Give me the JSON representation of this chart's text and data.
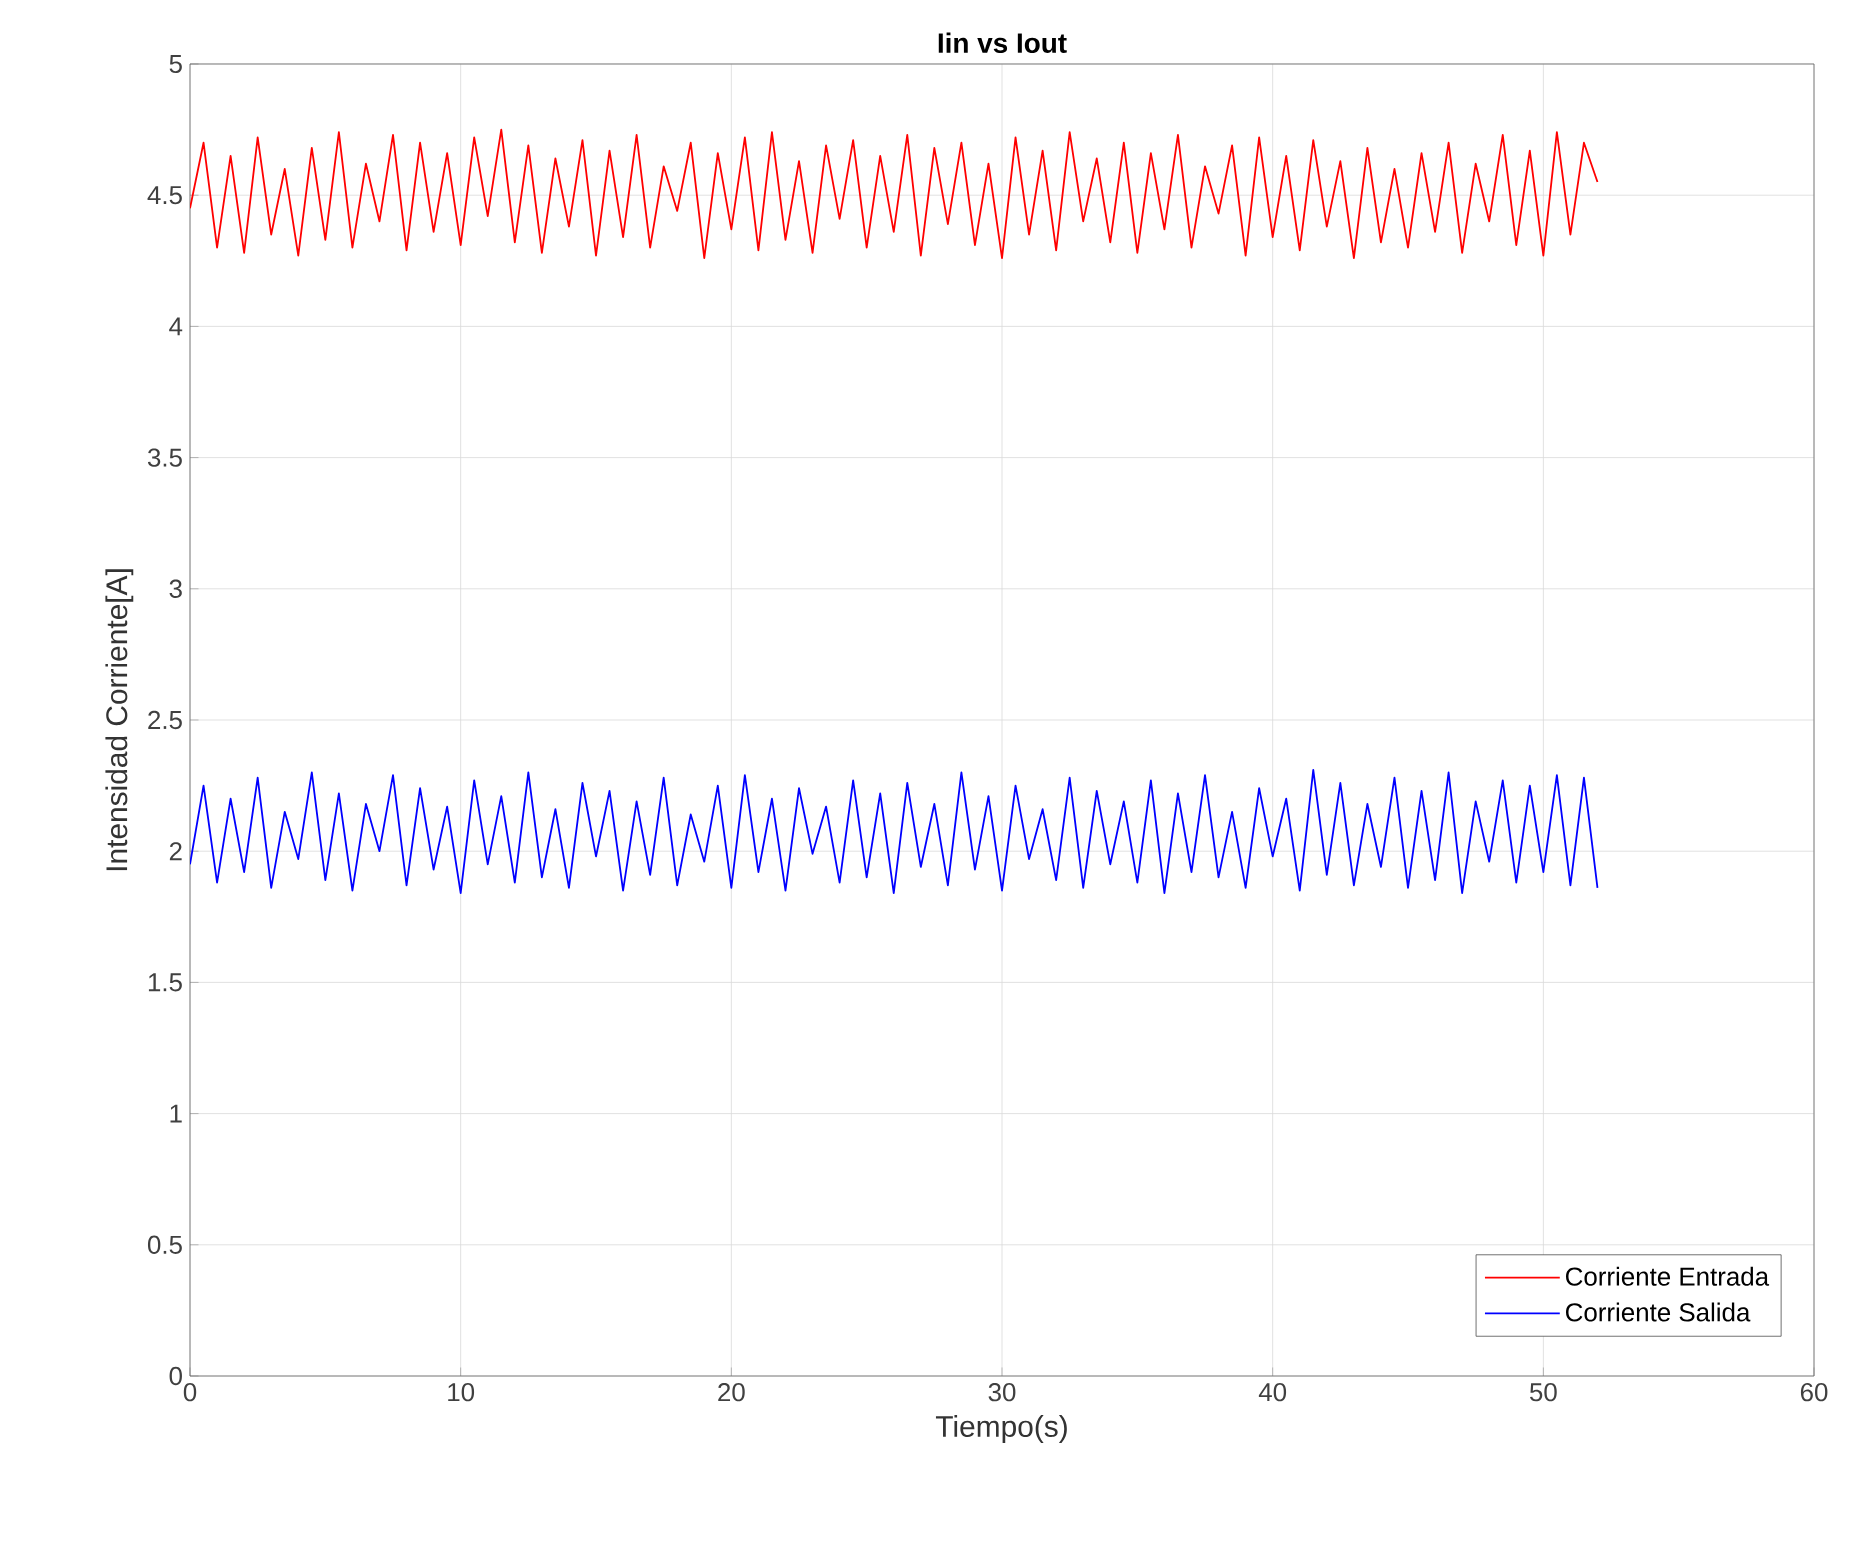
{
  "chart_data": {
    "type": "line",
    "title": "Iin vs Iout",
    "xlabel": "Tiempo(s)",
    "ylabel": "Intensidad Corriente[A]",
    "x": [
      0,
      0.5,
      1,
      1.5,
      2,
      2.5,
      3,
      3.5,
      4,
      4.5,
      5,
      5.5,
      6,
      6.5,
      7,
      7.5,
      8,
      8.5,
      9,
      9.5,
      10,
      10.5,
      11,
      11.5,
      12,
      12.5,
      13,
      13.5,
      14,
      14.5,
      15,
      15.5,
      16,
      16.5,
      17,
      17.5,
      18,
      18.5,
      19,
      19.5,
      20,
      20.5,
      21,
      21.5,
      22,
      22.5,
      23,
      23.5,
      24,
      24.5,
      25,
      25.5,
      26,
      26.5,
      27,
      27.5,
      28,
      28.5,
      29,
      29.5,
      30,
      30.5,
      31,
      31.5,
      32,
      32.5,
      33,
      33.5,
      34,
      34.5,
      35,
      35.5,
      36,
      36.5,
      37,
      37.5,
      38,
      38.5,
      39,
      39.5,
      40,
      40.5,
      41,
      41.5,
      42,
      42.5,
      43,
      43.5,
      44,
      44.5,
      45,
      45.5,
      46,
      46.5,
      47,
      47.5,
      48,
      48.5,
      49,
      49.5,
      50,
      50.5,
      51,
      51.5,
      52
    ],
    "series": [
      {
        "name": "Corriente Entrada",
        "color": "#ff0000",
        "values": [
          4.45,
          4.7,
          4.3,
          4.65,
          4.28,
          4.72,
          4.35,
          4.6,
          4.27,
          4.68,
          4.33,
          4.74,
          4.3,
          4.62,
          4.4,
          4.73,
          4.29,
          4.7,
          4.36,
          4.66,
          4.31,
          4.72,
          4.42,
          4.75,
          4.32,
          4.69,
          4.28,
          4.64,
          4.38,
          4.71,
          4.27,
          4.67,
          4.34,
          4.73,
          4.3,
          4.61,
          4.44,
          4.7,
          4.26,
          4.66,
          4.37,
          4.72,
          4.29,
          4.74,
          4.33,
          4.63,
          4.28,
          4.69,
          4.41,
          4.71,
          4.3,
          4.65,
          4.36,
          4.73,
          4.27,
          4.68,
          4.39,
          4.7,
          4.31,
          4.62,
          4.26,
          4.72,
          4.35,
          4.67,
          4.29,
          4.74,
          4.4,
          4.64,
          4.32,
          4.7,
          4.28,
          4.66,
          4.37,
          4.73,
          4.3,
          4.61,
          4.43,
          4.69,
          4.27,
          4.72,
          4.34,
          4.65,
          4.29,
          4.71,
          4.38,
          4.63,
          4.26,
          4.68,
          4.32,
          4.6,
          4.3,
          4.66,
          4.36,
          4.7,
          4.28,
          4.62,
          4.4,
          4.73,
          4.31,
          4.67,
          4.27,
          4.74,
          4.35,
          4.7,
          4.55
        ]
      },
      {
        "name": "Corriente Salida",
        "color": "#0000ff",
        "values": [
          1.95,
          2.25,
          1.88,
          2.2,
          1.92,
          2.28,
          1.86,
          2.15,
          1.97,
          2.3,
          1.89,
          2.22,
          1.85,
          2.18,
          2.0,
          2.29,
          1.87,
          2.24,
          1.93,
          2.17,
          1.84,
          2.27,
          1.95,
          2.21,
          1.88,
          2.3,
          1.9,
          2.16,
          1.86,
          2.26,
          1.98,
          2.23,
          1.85,
          2.19,
          1.91,
          2.28,
          1.87,
          2.14,
          1.96,
          2.25,
          1.86,
          2.29,
          1.92,
          2.2,
          1.85,
          2.24,
          1.99,
          2.17,
          1.88,
          2.27,
          1.9,
          2.22,
          1.84,
          2.26,
          1.94,
          2.18,
          1.87,
          2.3,
          1.93,
          2.21,
          1.85,
          2.25,
          1.97,
          2.16,
          1.89,
          2.28,
          1.86,
          2.23,
          1.95,
          2.19,
          1.88,
          2.27,
          1.84,
          2.22,
          1.92,
          2.29,
          1.9,
          2.15,
          1.86,
          2.24,
          1.98,
          2.2,
          1.85,
          2.31,
          1.91,
          2.26,
          1.87,
          2.18,
          1.94,
          2.28,
          1.86,
          2.23,
          1.89,
          2.3,
          1.84,
          2.19,
          1.96,
          2.27,
          1.88,
          2.25,
          1.92,
          2.29,
          1.87,
          2.28,
          1.86
        ]
      }
    ],
    "xlim": [
      0,
      60
    ],
    "ylim": [
      0,
      5
    ],
    "xticks": [
      0,
      10,
      20,
      30,
      40,
      50,
      60
    ],
    "yticks": [
      0,
      0.5,
      1,
      1.5,
      2,
      2.5,
      3,
      3.5,
      4,
      4.5,
      5
    ],
    "grid": true,
    "legend": "bottom right",
    "marker": "none",
    "line_style": "solid"
  }
}
